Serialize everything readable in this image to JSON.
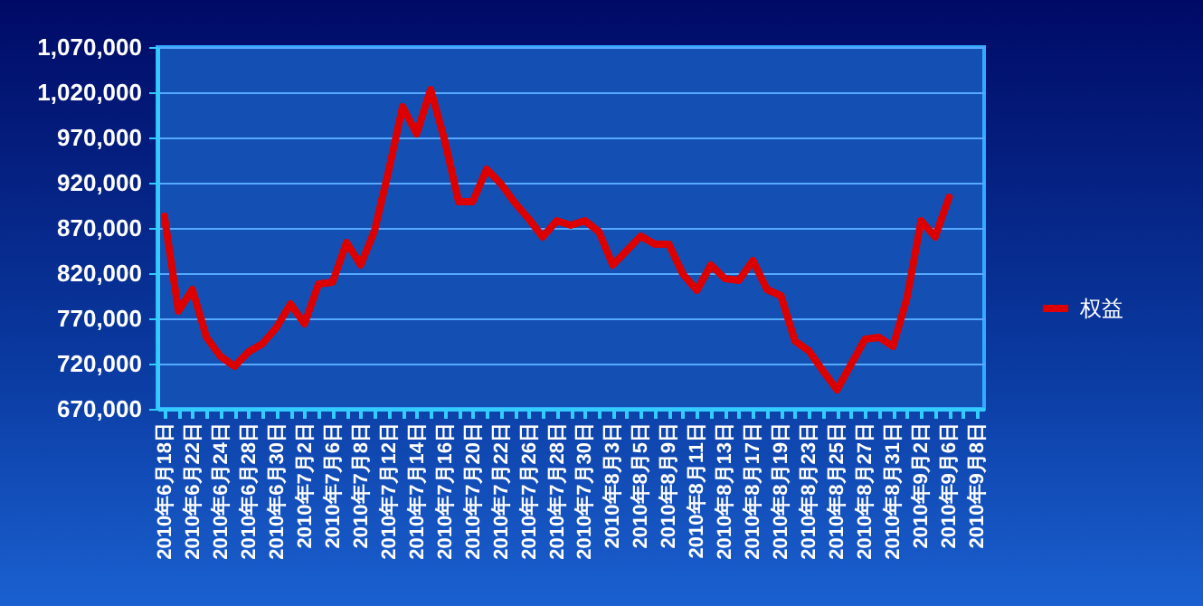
{
  "chart_data": {
    "type": "line",
    "categories": [
      "2010年6月18日",
      null,
      "2010年6月22日",
      null,
      "2010年6月24日",
      null,
      "2010年6月28日",
      null,
      "2010年6月30日",
      null,
      "2010年7月2日",
      null,
      "2010年7月6日",
      null,
      "2010年7月8日",
      null,
      "2010年7月12日",
      null,
      "2010年7月14日",
      null,
      "2010年7月16日",
      null,
      "2010年7月20日",
      null,
      "2010年7月22日",
      null,
      "2010年7月26日",
      null,
      "2010年7月28日",
      null,
      "2010年7月30日",
      null,
      "2010年8月3日",
      null,
      "2010年8月5日",
      null,
      "2010年8月9日",
      null,
      "2010年8月11日",
      null,
      "2010年8月13日",
      null,
      "2010年8月17日",
      null,
      "2010年8月19日",
      null,
      "2010年8月23日",
      null,
      "2010年8月25日",
      null,
      "2010年8月27日",
      null,
      "2010年8月31日",
      null,
      "2010年9月2日",
      null,
      "2010年9月6日",
      null,
      "2010年9月8日"
    ],
    "series": [
      {
        "name": "权益",
        "color": "#dd0000",
        "values": [
          883000,
          778000,
          802000,
          749000,
          728000,
          717000,
          733000,
          742000,
          760000,
          786000,
          764000,
          808000,
          810000,
          854000,
          829000,
          867000,
          933000,
          1004000,
          974000,
          1023000,
          967000,
          899000,
          899000,
          935000,
          919000,
          898000,
          880000,
          860000,
          878000,
          873000,
          878000,
          866000,
          829000,
          845000,
          861000,
          852000,
          852000,
          819000,
          801000,
          829000,
          814000,
          812000,
          834000,
          802000,
          795000,
          745000,
          734000,
          712000,
          691000,
          719000,
          747000,
          749000,
          739000,
          793000,
          878000,
          860000,
          904000,
          null,
          null
        ]
      }
    ],
    "ylim": [
      670000,
      1070000
    ],
    "yticks": [
      {
        "value": 670000,
        "label": "670,000"
      },
      {
        "value": 720000,
        "label": "720,000"
      },
      {
        "value": 770000,
        "label": "770,000"
      },
      {
        "value": 820000,
        "label": "820,000"
      },
      {
        "value": 870000,
        "label": "870,000"
      },
      {
        "value": 920000,
        "label": "920,000"
      },
      {
        "value": 970000,
        "label": "970,000"
      },
      {
        "value": 1020000,
        "label": "1,020,000"
      },
      {
        "value": 1070000,
        "label": "1,070,000"
      }
    ],
    "grid": "y",
    "legend": "right",
    "marker": "none",
    "line_style": "solid"
  }
}
